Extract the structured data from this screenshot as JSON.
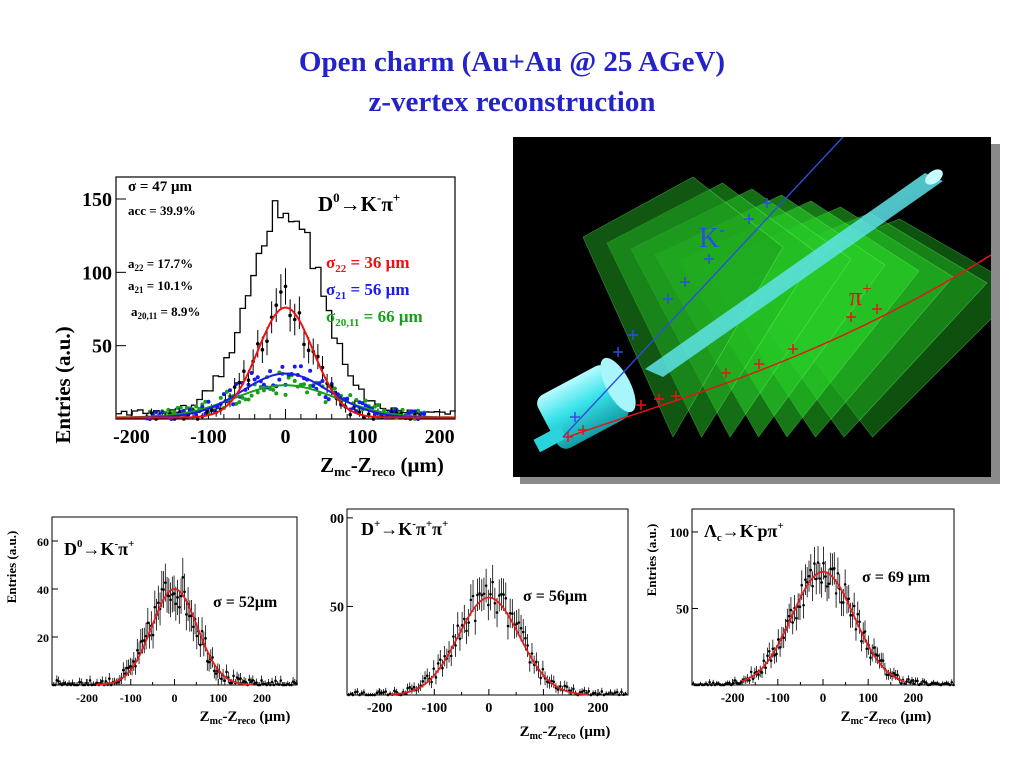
{
  "title": {
    "line1": "Open charm (Au+Au @ 25 AGeV)",
    "line2": "z-vertex reconstruction"
  },
  "main_plot": {
    "ylabel": "Entries (a.u.)",
    "xlabel": "Z",
    "xlabel_sub1": "mc",
    "xlabel_mid": "-Z",
    "xlabel_sub2": "reco",
    "xlabel_unit": " (μm)",
    "yticks": [
      "150",
      "100",
      "50"
    ],
    "xticks": [
      "-200",
      "-100",
      "0",
      "100",
      "200"
    ],
    "stats": {
      "sigma": "σ = 47 μm",
      "acc": "acc = 39.9%",
      "a22_pre": "a",
      "a22_sub": "22",
      "a22_val": " = 17.7%",
      "a21_pre": "a",
      "a21_sub": "21",
      "a21_val": " = 10.1%",
      "a2011_pre": "a",
      "a2011_sub": "20,11",
      "a2011_val": " = 8.9%"
    },
    "decay": {
      "d": "D",
      "d_sup": "0",
      "arrow": "→K",
      "k_sup": "-",
      "pi": "π",
      "pi_sup": "+"
    },
    "fits": {
      "s22_pre": "σ",
      "s22_sub": "22",
      "s22_val": " = 36 μm",
      "s21_pre": "σ",
      "s21_sub": "21",
      "s21_val": " = 56 μm",
      "s2011_pre": "σ",
      "s2011_sub": "20,11",
      "s2011_val": " = 66 μm"
    },
    "colors": {
      "s22": "#ee1111",
      "s21": "#1a1aee",
      "s2011": "#16a016"
    }
  },
  "detector": {
    "k_label": "K",
    "k_sup": "-",
    "pi_label": "π",
    "pi_sup": "+",
    "colors": {
      "background": "#000000",
      "stations": "#22cc22",
      "beampipe": "#33e6ea",
      "k_track": "#2a4fe0",
      "pi_track": "#e81414"
    }
  },
  "small_plots": [
    {
      "decay": {
        "d": "D",
        "d_sup": "0",
        "arrow": "→K",
        "k_sup": "-",
        "pi": "π",
        "pi_sup": "+",
        "extra": "",
        "extra_sup": ""
      },
      "sigma": "σ = 52μm",
      "ylabel": "Entries (a.u.)",
      "yticks": [
        "60",
        "40",
        "20"
      ],
      "xticks": [
        "-200",
        "-100",
        "0",
        "100",
        "200"
      ],
      "xlabel": "Z",
      "xlabel_sub1": "mc",
      "xlabel_mid": "-Z",
      "xlabel_sub2": "reco",
      "xlabel_unit": " (μm)"
    },
    {
      "decay": {
        "d": "D",
        "d_sup": "+",
        "arrow": "→K",
        "k_sup": "-",
        "pi": "π",
        "pi_sup": "+",
        "extra": "π",
        "extra_sup": "+"
      },
      "sigma": "σ = 56μm",
      "ylabel": "",
      "yticks": [
        "00",
        "50"
      ],
      "xticks": [
        "-200",
        "-100",
        "0",
        "100",
        "200"
      ],
      "xlabel": "Z",
      "xlabel_sub1": "mc",
      "xlabel_mid": "-Z",
      "xlabel_sub2": "reco",
      "xlabel_unit": " (μm)"
    },
    {
      "decay": {
        "d": "Λ",
        "d_sub": "c",
        "arrow": "→K",
        "k_sup": "-",
        "pi": "pπ",
        "pi_sup": "+",
        "extra": "",
        "extra_sup": ""
      },
      "sigma": "σ = 69 μm",
      "ylabel": "Entries (a.u.)",
      "yticks": [
        "100",
        "50"
      ],
      "xticks": [
        "-200",
        "-100",
        "0",
        "100",
        "200"
      ],
      "xlabel": "Z",
      "xlabel_sub1": "mc",
      "xlabel_mid": "-Z",
      "xlabel_sub2": "reco",
      "xlabel_unit": " (μm)"
    }
  ],
  "chart_data": [
    {
      "type": "histogram",
      "x_range": [
        -220,
        220
      ],
      "ylim": [
        0,
        165
      ],
      "series": [
        {
          "name": "σ = 47 μm",
          "kind": "histogram-step",
          "sigma": 47,
          "amplitude": 135,
          "color": "#000000"
        },
        {
          "name": "σ22 = 36 μm",
          "kind": "points+fit",
          "sigma": 36,
          "amplitude": 75,
          "color": "#ee1111"
        },
        {
          "name": "σ21 = 56 μm",
          "kind": "points+fit",
          "sigma": 56,
          "amplitude": 30,
          "color": "#1a1aee"
        },
        {
          "name": "σ20,11 = 66 μm",
          "kind": "points+fit",
          "sigma": 66,
          "amplitude": 22,
          "color": "#16a016"
        }
      ]
    },
    {
      "type": "histogram",
      "x_range": [
        -280,
        280
      ],
      "ylim": [
        0,
        70
      ],
      "series": [
        {
          "name": "σ = 52μm",
          "sigma": 52,
          "amplitude": 40
        }
      ]
    },
    {
      "type": "histogram",
      "x_range": [
        -260,
        255
      ],
      "ylim": [
        0,
        105
      ],
      "series": [
        {
          "name": "σ = 56μm",
          "sigma": 56,
          "amplitude": 55
        }
      ]
    },
    {
      "type": "histogram",
      "x_range": [
        -290,
        290
      ],
      "ylim": [
        0,
        115
      ],
      "series": [
        {
          "name": "σ = 69 μm",
          "sigma": 69,
          "amplitude": 74
        }
      ]
    }
  ]
}
